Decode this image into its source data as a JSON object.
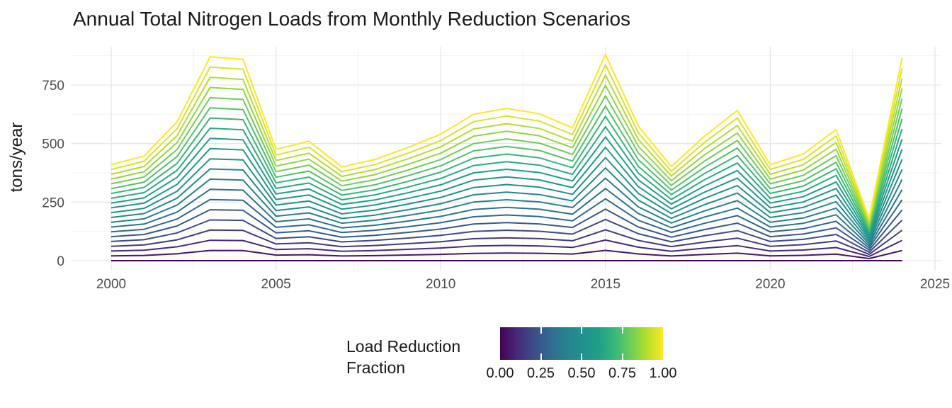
{
  "title": "Annual Total Nitrogen Loads from Monthly Reduction Scenarios",
  "axes": {
    "y_label": "tons/year",
    "y_tick_labels": [
      "0",
      "250",
      "500",
      "750"
    ],
    "x_tick_labels": [
      "2000",
      "2005",
      "2010",
      "2015",
      "2020",
      "2025"
    ]
  },
  "legend": {
    "title_line1": "Load Reduction",
    "title_line2": "Fraction",
    "tick_labels": [
      "0.00",
      "0.25",
      "0.50",
      "0.75",
      "1.00"
    ]
  },
  "colors": {
    "background": "#ffffff",
    "grid_major": "#e6e6e6",
    "grid_minor": "#f0f0f0",
    "tick_label": "#4d4d4d",
    "text": "#1a1a1a",
    "viridis_anchors": [
      "#440154",
      "#482878",
      "#3e4a89",
      "#31688e",
      "#26828e",
      "#21918c",
      "#1f9e89",
      "#35b779",
      "#6dcd59",
      "#b4de2c",
      "#fde725"
    ]
  },
  "chart_data": {
    "type": "line",
    "title": "Annual Total Nitrogen Loads from Monthly Reduction Scenarios",
    "xlabel": "",
    "ylabel": "tons/year",
    "x": [
      2000,
      2001,
      2002,
      2003,
      2004,
      2005,
      2006,
      2007,
      2008,
      2009,
      2010,
      2011,
      2012,
      2013,
      2014,
      2015,
      2016,
      2017,
      2018,
      2019,
      2020,
      2021,
      2022,
      2023,
      2024
    ],
    "base_values": [
      410,
      447,
      593,
      870,
      860,
      475,
      510,
      400,
      432,
      483,
      540,
      625,
      650,
      627,
      567,
      880,
      574,
      402,
      531,
      641,
      410,
      455,
      560,
      180,
      865
    ],
    "series_fractions": [
      0.0,
      0.05,
      0.1,
      0.15,
      0.2,
      0.25,
      0.3,
      0.35,
      0.4,
      0.45,
      0.5,
      0.55,
      0.6,
      0.65,
      0.7,
      0.75,
      0.8,
      0.85,
      0.9,
      0.95,
      1.0
    ],
    "series_rule": "each line's values = base_values multiplied by its load reduction fraction; line color = viridis(fraction)",
    "x_tick_values": [
      2000,
      2005,
      2010,
      2015,
      2020,
      2025
    ],
    "x_minor_tick_values": [
      2002.5,
      2007.5,
      2012.5,
      2017.5,
      2022.5
    ],
    "y_tick_values": [
      0,
      250,
      500,
      750
    ],
    "y_minor_tick_values": [
      125,
      375,
      625,
      875
    ],
    "xlim": [
      1998.8,
      2026.2
    ],
    "ylim": [
      0,
      880
    ],
    "grid": true,
    "legend_position": "bottom",
    "legend_title": "Load Reduction Fraction",
    "legend_scale_labels": [
      0.0,
      0.25,
      0.5,
      0.75,
      1.0
    ]
  }
}
